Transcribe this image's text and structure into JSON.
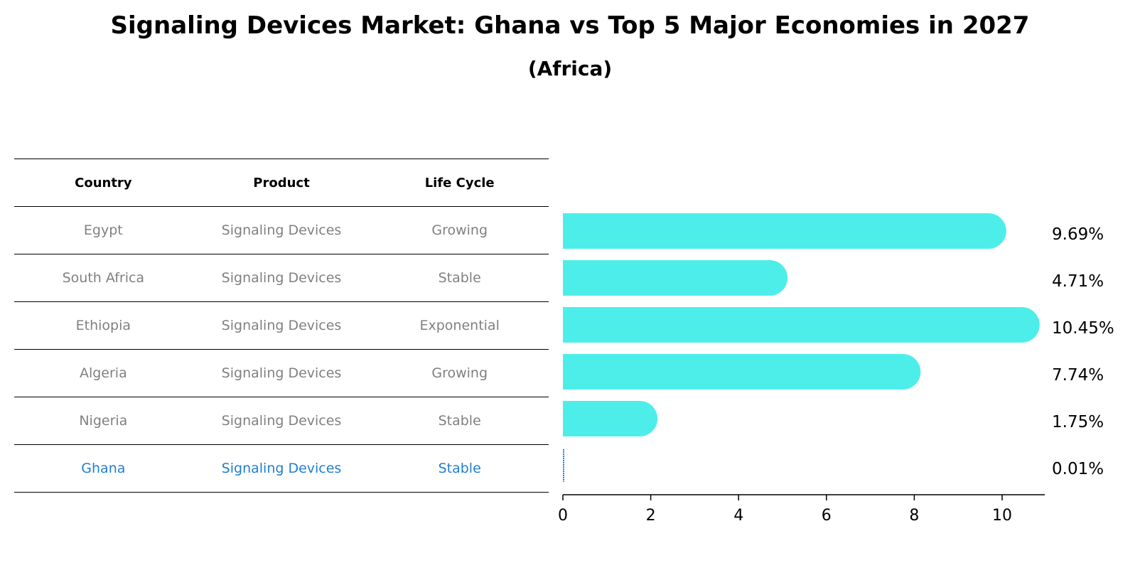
{
  "title": "Signaling Devices Market: Ghana vs Top 5 Major Economies in 2027",
  "subtitle": "(Africa)",
  "table": {
    "headers": [
      "Country",
      "Product",
      "Life Cycle"
    ],
    "rows": [
      {
        "country": "Egypt",
        "product": "Signaling Devices",
        "life_cycle": "Growing"
      },
      {
        "country": "South Africa",
        "product": "Signaling Devices",
        "life_cycle": "Stable"
      },
      {
        "country": "Ethiopia",
        "product": "Signaling Devices",
        "life_cycle": "Exponential"
      },
      {
        "country": "Algeria",
        "product": "Signaling Devices",
        "life_cycle": "Growing"
      },
      {
        "country": "Nigeria",
        "product": "Signaling Devices",
        "life_cycle": "Stable"
      },
      {
        "country": "Ghana",
        "product": "Signaling Devices",
        "life_cycle": "Stable"
      }
    ]
  },
  "chart_data": {
    "type": "bar",
    "orientation": "horizontal",
    "categories": [
      "Egypt",
      "South Africa",
      "Ethiopia",
      "Algeria",
      "Nigeria",
      "Ghana"
    ],
    "values": [
      9.69,
      4.71,
      10.45,
      7.74,
      1.75,
      0.01
    ],
    "value_labels": [
      "9.69%",
      "4.71%",
      "10.45%",
      "7.74%",
      "1.75%",
      "0.01%"
    ],
    "xlim": [
      0,
      11
    ],
    "xticks": [
      0,
      2,
      4,
      6,
      8,
      10
    ],
    "xtick_labels": [
      "0",
      "2",
      "4",
      "6",
      "8",
      "10"
    ],
    "highlight": "Ghana",
    "colors": {
      "bar": "#4deeea",
      "highlight": "#1f7fd1"
    }
  }
}
